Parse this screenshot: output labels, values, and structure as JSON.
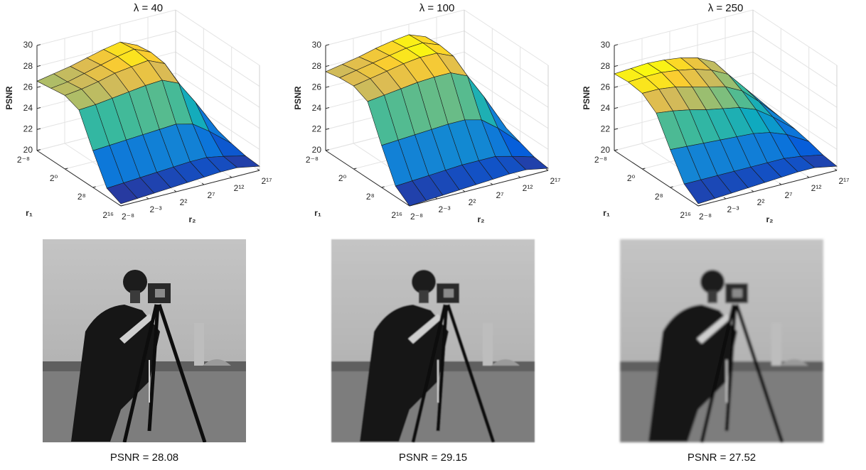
{
  "chart_data": [
    {
      "type": "surface",
      "title": "λ = 40",
      "xlabel": "r₁",
      "ylabel": "r₂",
      "zlabel": "PSNR",
      "x": [
        -8,
        -4,
        0,
        4,
        8,
        12,
        16
      ],
      "y": [
        -8,
        -5,
        -2,
        1,
        4,
        7,
        10,
        13,
        17
      ],
      "values": [
        [
          26.6,
          26.9,
          27.2,
          27.6,
          28.0,
          28.3,
          27.6,
          25.0,
          21.5
        ],
        [
          26.8,
          27.0,
          27.4,
          27.8,
          28.2,
          28.5,
          27.8,
          25.2,
          21.6
        ],
        [
          27.0,
          27.2,
          27.5,
          27.9,
          28.1,
          28.3,
          27.6,
          25.0,
          21.4
        ],
        [
          26.5,
          26.6,
          26.8,
          27.0,
          27.2,
          27.3,
          26.6,
          24.4,
          21.2
        ],
        [
          23.5,
          23.6,
          23.7,
          23.8,
          23.9,
          24.0,
          23.6,
          22.5,
          20.8
        ],
        [
          20.8,
          20.9,
          21.0,
          21.1,
          21.2,
          21.3,
          21.3,
          21.0,
          20.5
        ],
        [
          20.2,
          20.3,
          20.4,
          20.5,
          20.6,
          20.7,
          20.8,
          20.8,
          20.4
        ]
      ],
      "xlim": [
        -8,
        16
      ],
      "ylim": [
        -8,
        17
      ],
      "zlim": [
        20,
        30
      ],
      "xticks": [
        {
          "value": -8,
          "label": "2⁻⁸"
        },
        {
          "value": 0,
          "label": "2⁰"
        },
        {
          "value": 8,
          "label": "2⁸"
        },
        {
          "value": 16,
          "label": "2¹⁶"
        }
      ],
      "yticks": [
        {
          "value": -8,
          "label": "2⁻⁸"
        },
        {
          "value": -3,
          "label": "2⁻³"
        },
        {
          "value": 2,
          "label": "2²"
        },
        {
          "value": 7,
          "label": "2⁷"
        },
        {
          "value": 12,
          "label": "2¹²"
        },
        {
          "value": 17,
          "label": "2¹⁷"
        }
      ],
      "zticks": [
        20,
        22,
        24,
        26,
        28,
        30
      ],
      "grid": true
    },
    {
      "type": "surface",
      "title": "λ = 100",
      "xlabel": "r₁",
      "ylabel": "r₂",
      "zlabel": "PSNR",
      "x": [
        -8,
        -4,
        0,
        4,
        8,
        12,
        16
      ],
      "y": [
        -8,
        -5,
        -2,
        1,
        4,
        7,
        10,
        13,
        17
      ],
      "values": [
        [
          27.5,
          27.8,
          28.1,
          28.5,
          28.8,
          29.0,
          28.4,
          25.8,
          21.8
        ],
        [
          27.8,
          28.1,
          28.4,
          28.7,
          29.0,
          29.1,
          28.5,
          25.9,
          21.9
        ],
        [
          27.9,
          28.2,
          28.5,
          28.8,
          29.0,
          29.0,
          28.3,
          25.6,
          21.7
        ],
        [
          27.3,
          27.5,
          27.7,
          27.9,
          28.0,
          28.0,
          27.3,
          24.9,
          21.4
        ],
        [
          24.0,
          24.1,
          24.2,
          24.3,
          24.4,
          24.4,
          24.0,
          22.8,
          20.9
        ],
        [
          21.0,
          21.1,
          21.2,
          21.3,
          21.4,
          21.4,
          21.4,
          21.0,
          20.4
        ],
        [
          20.0,
          20.1,
          20.2,
          20.3,
          20.4,
          20.5,
          20.6,
          20.6,
          20.2
        ]
      ],
      "xlim": [
        -8,
        16
      ],
      "ylim": [
        -8,
        17
      ],
      "zlim": [
        20,
        30
      ],
      "xticks": [
        {
          "value": -8,
          "label": "2⁻⁸"
        },
        {
          "value": 0,
          "label": "2⁰"
        },
        {
          "value": 8,
          "label": "2⁸"
        },
        {
          "value": 16,
          "label": "2¹⁶"
        }
      ],
      "yticks": [
        {
          "value": -8,
          "label": "2⁻⁸"
        },
        {
          "value": -3,
          "label": "2⁻³"
        },
        {
          "value": 2,
          "label": "2²"
        },
        {
          "value": 7,
          "label": "2⁷"
        },
        {
          "value": 12,
          "label": "2¹²"
        },
        {
          "value": 17,
          "label": "2¹⁷"
        }
      ],
      "zticks": [
        20,
        22,
        24,
        26,
        28,
        30
      ],
      "grid": true
    },
    {
      "type": "surface",
      "title": "λ = 250",
      "xlabel": "r₁",
      "ylabel": "r₂",
      "zlabel": "PSNR",
      "x": [
        -8,
        -4,
        0,
        4,
        8,
        12,
        16
      ],
      "y": [
        -8,
        -5,
        -2,
        1,
        4,
        7,
        10,
        13,
        17
      ],
      "values": [
        [
          27.3,
          27.4,
          27.5,
          27.4,
          27.2,
          26.8,
          26.0,
          24.2,
          21.8
        ],
        [
          27.4,
          27.5,
          27.5,
          27.3,
          27.0,
          26.5,
          25.7,
          24.0,
          21.7
        ],
        [
          27.2,
          27.2,
          27.0,
          26.6,
          26.2,
          25.8,
          25.0,
          23.6,
          21.5
        ],
        [
          26.2,
          26.0,
          25.7,
          25.3,
          25.0,
          24.7,
          24.1,
          23.0,
          21.3
        ],
        [
          23.6,
          23.5,
          23.4,
          23.3,
          23.2,
          23.1,
          22.8,
          22.2,
          21.0
        ],
        [
          21.2,
          21.2,
          21.2,
          21.2,
          21.2,
          21.2,
          21.2,
          21.0,
          20.6
        ],
        [
          20.2,
          20.3,
          20.4,
          20.5,
          20.6,
          20.7,
          20.8,
          20.8,
          20.4
        ]
      ],
      "xlim": [
        -8,
        16
      ],
      "ylim": [
        -8,
        17
      ],
      "zlim": [
        20,
        30
      ],
      "xticks": [
        {
          "value": -8,
          "label": "2⁻⁸"
        },
        {
          "value": 0,
          "label": "2⁰"
        },
        {
          "value": 8,
          "label": "2⁸"
        },
        {
          "value": 16,
          "label": "2¹⁶"
        }
      ],
      "yticks": [
        {
          "value": -8,
          "label": "2⁻⁸"
        },
        {
          "value": -3,
          "label": "2⁻³"
        },
        {
          "value": 2,
          "label": "2²"
        },
        {
          "value": 7,
          "label": "2⁷"
        },
        {
          "value": 12,
          "label": "2¹²"
        },
        {
          "value": 17,
          "label": "2¹⁷"
        }
      ],
      "zticks": [
        20,
        22,
        24,
        26,
        28,
        30
      ],
      "grid": true
    }
  ],
  "images": [
    {
      "caption": "PSNR = 28.08"
    },
    {
      "caption": "PSNR = 29.15"
    },
    {
      "caption": "PSNR = 27.52"
    }
  ]
}
